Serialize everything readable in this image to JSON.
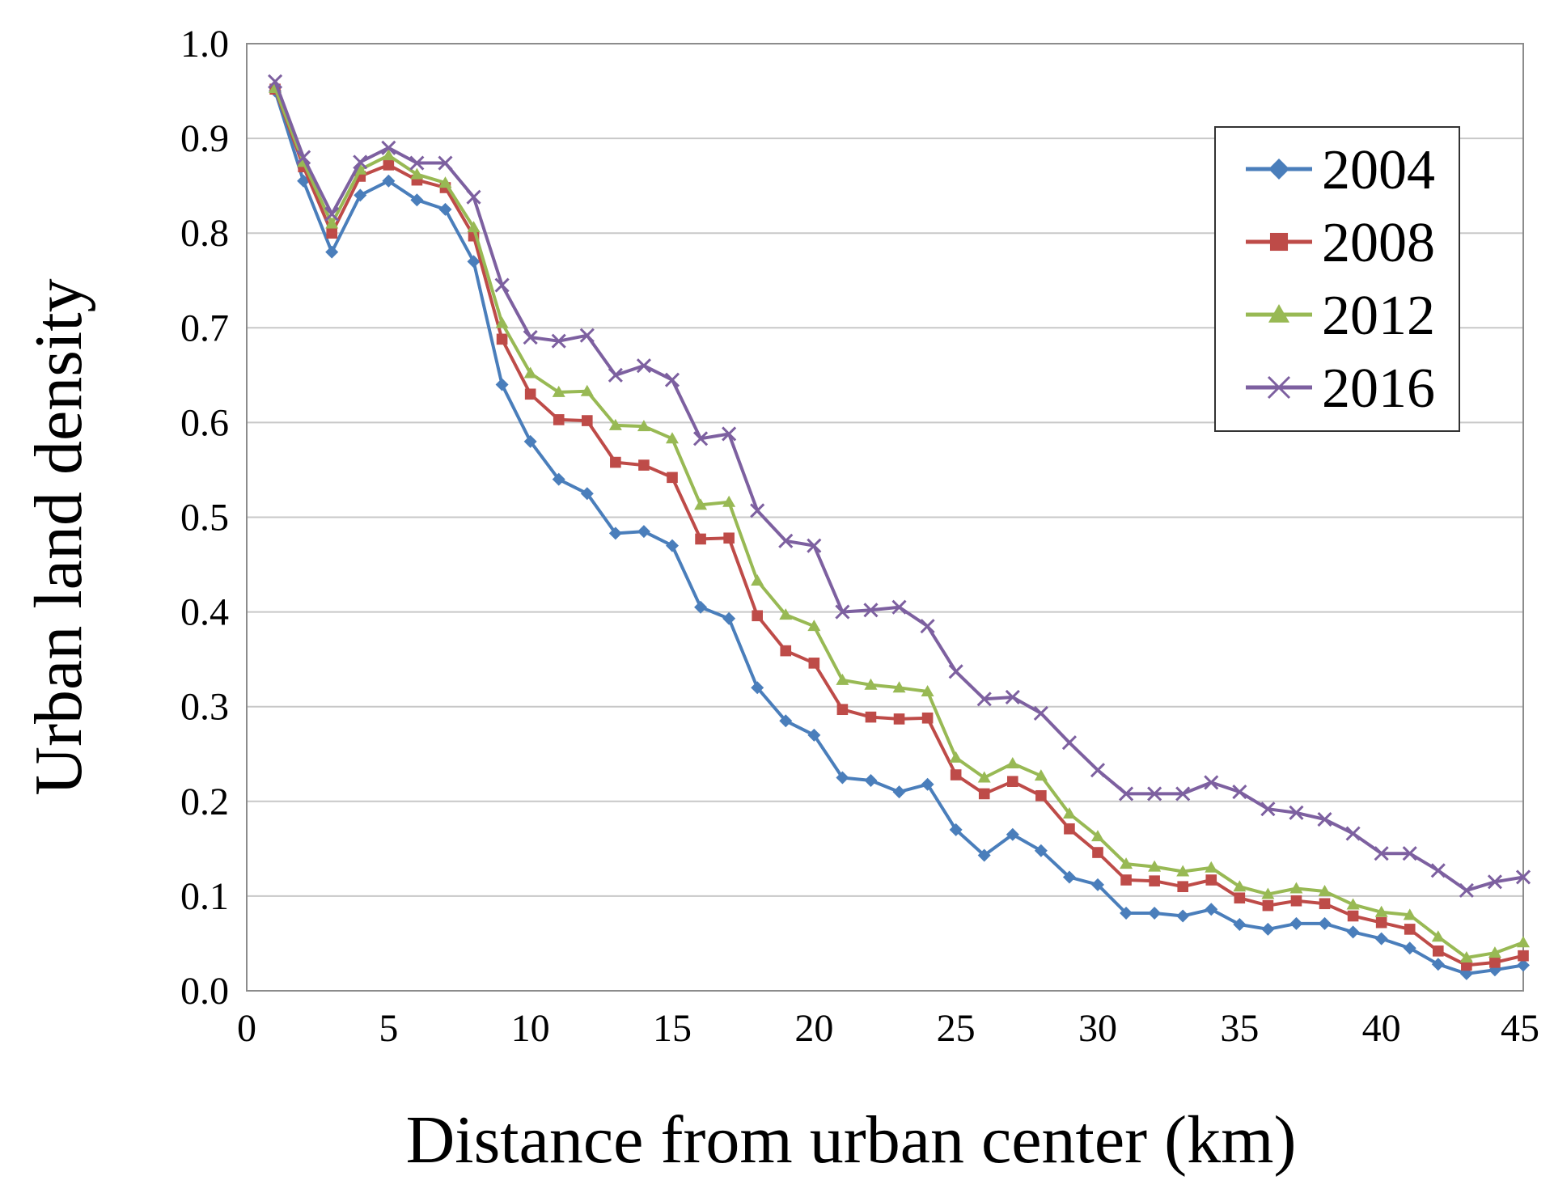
{
  "chart_data": {
    "type": "line",
    "title": "",
    "xlabel": "Distance from urban center (km)",
    "ylabel": "Urban land density",
    "xlim": [
      0,
      45
    ],
    "ylim": [
      0,
      1
    ],
    "xticks": [
      "0",
      "5",
      "10",
      "15",
      "20",
      "25",
      "30",
      "35",
      "40",
      "45"
    ],
    "yticks": [
      "0.0",
      "0.1",
      "0.2",
      "0.3",
      "0.4",
      "0.5",
      "0.6",
      "0.7",
      "0.8",
      "0.9",
      "1.0"
    ],
    "grid": true,
    "legend_position": "top-right",
    "x": [
      1,
      2,
      3,
      4,
      5,
      6,
      7,
      8,
      9,
      10,
      11,
      12,
      13,
      14,
      15,
      16,
      17,
      18,
      19,
      20,
      21,
      22,
      23,
      24,
      25,
      26,
      27,
      28,
      29,
      30,
      31,
      32,
      33,
      34,
      35,
      36,
      37,
      38,
      39,
      40,
      41,
      42,
      43,
      44,
      45
    ],
    "series": [
      {
        "name": "2004",
        "color": "#4a7ebb",
        "marker": "diamond",
        "values": [
          0.95,
          0.855,
          0.78,
          0.84,
          0.855,
          0.835,
          0.825,
          0.77,
          0.64,
          0.58,
          0.54,
          0.525,
          0.483,
          0.485,
          0.47,
          0.405,
          0.393,
          0.32,
          0.285,
          0.27,
          0.225,
          0.222,
          0.21,
          0.218,
          0.17,
          0.143,
          0.165,
          0.148,
          0.12,
          0.112,
          0.082,
          0.082,
          0.079,
          0.086,
          0.07,
          0.065,
          0.071,
          0.071,
          0.062,
          0.055,
          0.045,
          0.028,
          0.018,
          0.022,
          0.027
        ]
      },
      {
        "name": "2008",
        "color": "#be4b48",
        "marker": "square",
        "values": [
          0.952,
          0.87,
          0.8,
          0.86,
          0.872,
          0.856,
          0.848,
          0.797,
          0.688,
          0.63,
          0.603,
          0.602,
          0.558,
          0.555,
          0.542,
          0.477,
          0.478,
          0.396,
          0.359,
          0.346,
          0.297,
          0.289,
          0.287,
          0.288,
          0.228,
          0.208,
          0.221,
          0.206,
          0.171,
          0.146,
          0.117,
          0.116,
          0.11,
          0.117,
          0.098,
          0.09,
          0.095,
          0.092,
          0.079,
          0.072,
          0.065,
          0.042,
          0.027,
          0.03,
          0.037
        ]
      },
      {
        "name": "2012",
        "color": "#98b954",
        "marker": "triangle",
        "values": [
          0.953,
          0.875,
          0.81,
          0.867,
          0.882,
          0.862,
          0.853,
          0.806,
          0.705,
          0.652,
          0.632,
          0.633,
          0.597,
          0.596,
          0.583,
          0.513,
          0.516,
          0.433,
          0.397,
          0.385,
          0.328,
          0.323,
          0.32,
          0.316,
          0.246,
          0.225,
          0.24,
          0.227,
          0.187,
          0.163,
          0.134,
          0.131,
          0.126,
          0.13,
          0.11,
          0.102,
          0.108,
          0.105,
          0.091,
          0.083,
          0.08,
          0.057,
          0.035,
          0.04,
          0.051
        ]
      },
      {
        "name": "2016",
        "color": "#7d60a0",
        "marker": "x",
        "values": [
          0.96,
          0.88,
          0.82,
          0.875,
          0.89,
          0.874,
          0.874,
          0.838,
          0.745,
          0.69,
          0.686,
          0.692,
          0.65,
          0.66,
          0.645,
          0.583,
          0.588,
          0.507,
          0.475,
          0.47,
          0.4,
          0.402,
          0.405,
          0.385,
          0.337,
          0.308,
          0.31,
          0.293,
          0.262,
          0.233,
          0.208,
          0.208,
          0.208,
          0.22,
          0.21,
          0.192,
          0.188,
          0.181,
          0.166,
          0.145,
          0.145,
          0.127,
          0.106,
          0.115,
          0.12
        ]
      }
    ]
  }
}
